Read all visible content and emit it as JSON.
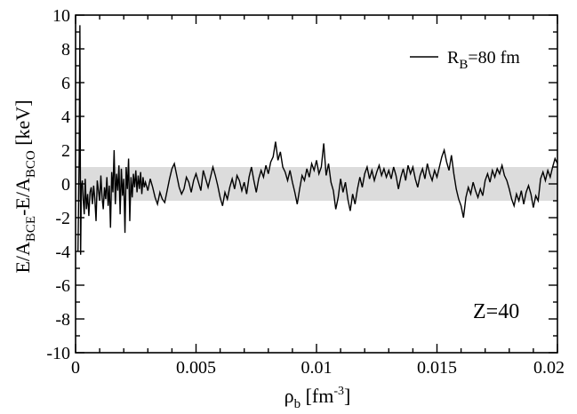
{
  "chart_data": {
    "type": "line",
    "xlabel": "ρ_b [fm^-3]",
    "ylabel": "E/A_BCE-E/A_BCO [keV]",
    "xlim": [
      0,
      0.02
    ],
    "ylim": [
      -10,
      10
    ],
    "x_ticks": [
      "0",
      "0.005",
      "0.01",
      "0.015",
      "0.02"
    ],
    "y_ticks": [
      "10",
      "8",
      "6",
      "4",
      "2",
      "0",
      "-2",
      "-4",
      "-6",
      "-8",
      "-10"
    ],
    "legend": {
      "placement": "top-right",
      "label": "R_B=80 fm"
    },
    "annotation": "Z=40",
    "band": {
      "ymin": -1,
      "ymax": 1,
      "color": "#dcdcdc"
    },
    "grid": false,
    "series": [
      {
        "name": "R_B=80 fm",
        "color": "#000000",
        "points": [
          [
            0.0001,
            -4.0
          ],
          [
            0.00015,
            1.5
          ],
          [
            0.00018,
            9.4
          ],
          [
            0.00021,
            -4.2
          ],
          [
            0.00024,
            -0.2
          ],
          [
            0.00028,
            0.2
          ],
          [
            0.00032,
            -1.0
          ],
          [
            0.00036,
            -1.8
          ],
          [
            0.0004,
            0.3
          ],
          [
            0.00045,
            -1.5
          ],
          [
            0.0005,
            -0.6
          ],
          [
            0.00055,
            -1.9
          ],
          [
            0.0006,
            -0.5
          ],
          [
            0.00065,
            -0.2
          ],
          [
            0.0007,
            -1.2
          ],
          [
            0.00075,
            -0.1
          ],
          [
            0.0008,
            -0.9
          ],
          [
            0.00085,
            -2.2
          ],
          [
            0.0009,
            0.2
          ],
          [
            0.00095,
            -0.4
          ],
          [
            0.001,
            -1.0
          ],
          [
            0.00105,
            0.5
          ],
          [
            0.0011,
            -0.8
          ],
          [
            0.00115,
            -1.5
          ],
          [
            0.0012,
            -0.2
          ],
          [
            0.00125,
            -0.9
          ],
          [
            0.0013,
            0.4
          ],
          [
            0.00135,
            -1.3
          ],
          [
            0.0014,
            -0.1
          ],
          [
            0.00145,
            -2.6
          ],
          [
            0.0015,
            0.7
          ],
          [
            0.00155,
            -0.5
          ],
          [
            0.0016,
            2.0
          ],
          [
            0.00165,
            -1.2
          ],
          [
            0.0017,
            0.6
          ],
          [
            0.00175,
            -0.4
          ],
          [
            0.0018,
            1.1
          ],
          [
            0.00185,
            -1.8
          ],
          [
            0.0019,
            0.9
          ],
          [
            0.00195,
            -0.7
          ],
          [
            0.002,
            0.3
          ],
          [
            0.00205,
            -2.9
          ],
          [
            0.0021,
            1.0
          ],
          [
            0.00215,
            -0.3
          ],
          [
            0.0022,
            1.5
          ],
          [
            0.00225,
            -2.2
          ],
          [
            0.0023,
            0.4
          ],
          [
            0.00235,
            -0.8
          ],
          [
            0.0024,
            0.6
          ],
          [
            0.00245,
            -0.2
          ],
          [
            0.0025,
            0.8
          ],
          [
            0.00255,
            -0.5
          ],
          [
            0.0026,
            0.5
          ],
          [
            0.00265,
            -0.3
          ],
          [
            0.0027,
            0.7
          ],
          [
            0.00275,
            -0.6
          ],
          [
            0.0028,
            0.4
          ],
          [
            0.00285,
            -0.2
          ],
          [
            0.0029,
            0.1
          ],
          [
            0.003,
            -0.4
          ],
          [
            0.0031,
            0.3
          ],
          [
            0.0032,
            -0.2
          ],
          [
            0.0033,
            -0.8
          ],
          [
            0.0034,
            -1.2
          ],
          [
            0.0035,
            -0.5
          ],
          [
            0.0036,
            -0.9
          ],
          [
            0.0037,
            -1.1
          ],
          [
            0.0038,
            -0.4
          ],
          [
            0.0039,
            0.3
          ],
          [
            0.004,
            0.9
          ],
          [
            0.0041,
            1.2
          ],
          [
            0.0042,
            0.5
          ],
          [
            0.0043,
            -0.2
          ],
          [
            0.0044,
            -0.6
          ],
          [
            0.0045,
            -0.3
          ],
          [
            0.0046,
            0.4
          ],
          [
            0.0047,
            0.1
          ],
          [
            0.0048,
            -0.5
          ],
          [
            0.0049,
            0.2
          ],
          [
            0.005,
            0.6
          ],
          [
            0.0051,
            0.1
          ],
          [
            0.0052,
            -0.4
          ],
          [
            0.0053,
            0.8
          ],
          [
            0.0054,
            0.3
          ],
          [
            0.0055,
            -0.2
          ],
          [
            0.0056,
            0.4
          ],
          [
            0.0057,
            1.0
          ],
          [
            0.0058,
            0.5
          ],
          [
            0.0059,
            -0.1
          ],
          [
            0.006,
            -0.8
          ],
          [
            0.0061,
            -1.3
          ],
          [
            0.0062,
            -0.5
          ],
          [
            0.0063,
            -0.9
          ],
          [
            0.0064,
            -0.2
          ],
          [
            0.0065,
            0.3
          ],
          [
            0.0066,
            -0.3
          ],
          [
            0.0067,
            0.5
          ],
          [
            0.0068,
            0.2
          ],
          [
            0.0069,
            -0.4
          ],
          [
            0.007,
            0.1
          ],
          [
            0.0071,
            -0.6
          ],
          [
            0.0072,
            0.4
          ],
          [
            0.0073,
            1.0
          ],
          [
            0.0074,
            0.2
          ],
          [
            0.0075,
            -0.5
          ],
          [
            0.0076,
            0.3
          ],
          [
            0.0077,
            0.8
          ],
          [
            0.0078,
            0.4
          ],
          [
            0.0079,
            1.1
          ],
          [
            0.008,
            0.6
          ],
          [
            0.0081,
            1.3
          ],
          [
            0.0082,
            1.6
          ],
          [
            0.0083,
            2.5
          ],
          [
            0.0084,
            1.4
          ],
          [
            0.0085,
            1.9
          ],
          [
            0.0086,
            1.0
          ],
          [
            0.0087,
            0.7
          ],
          [
            0.0088,
            0.2
          ],
          [
            0.0089,
            0.8
          ],
          [
            0.009,
            0.1
          ],
          [
            0.0091,
            -0.5
          ],
          [
            0.0092,
            -1.2
          ],
          [
            0.0093,
            -0.3
          ],
          [
            0.0094,
            0.5
          ],
          [
            0.0095,
            0.2
          ],
          [
            0.0096,
            0.9
          ],
          [
            0.0097,
            0.4
          ],
          [
            0.0098,
            1.2
          ],
          [
            0.0099,
            0.8
          ],
          [
            0.01,
            1.4
          ],
          [
            0.0101,
            0.6
          ],
          [
            0.0102,
            1.0
          ],
          [
            0.0103,
            2.4
          ],
          [
            0.0104,
            0.5
          ],
          [
            0.0105,
            1.2
          ],
          [
            0.0106,
            0.1
          ],
          [
            0.0107,
            -0.4
          ],
          [
            0.0108,
            -1.5
          ],
          [
            0.0109,
            -0.8
          ],
          [
            0.011,
            0.3
          ],
          [
            0.0111,
            -0.5
          ],
          [
            0.0112,
            0.1
          ],
          [
            0.0113,
            -0.9
          ],
          [
            0.0114,
            -1.6
          ],
          [
            0.0115,
            -0.6
          ],
          [
            0.0116,
            -1.2
          ],
          [
            0.0117,
            -0.3
          ],
          [
            0.0118,
            0.4
          ],
          [
            0.0119,
            -0.2
          ],
          [
            0.012,
            0.6
          ],
          [
            0.0121,
            1.0
          ],
          [
            0.0122,
            0.3
          ],
          [
            0.0123,
            0.8
          ],
          [
            0.0124,
            0.2
          ],
          [
            0.0125,
            0.7
          ],
          [
            0.0126,
            1.1
          ],
          [
            0.0127,
            0.5
          ],
          [
            0.0128,
            0.9
          ],
          [
            0.0129,
            0.4
          ],
          [
            0.013,
            0.8
          ],
          [
            0.0131,
            0.3
          ],
          [
            0.0132,
            1.0
          ],
          [
            0.0133,
            0.5
          ],
          [
            0.0134,
            -0.3
          ],
          [
            0.0135,
            0.4
          ],
          [
            0.0136,
            0.9
          ],
          [
            0.0137,
            0.2
          ],
          [
            0.0138,
            1.1
          ],
          [
            0.0139,
            0.6
          ],
          [
            0.014,
            1.0
          ],
          [
            0.0141,
            0.3
          ],
          [
            0.0142,
            -0.2
          ],
          [
            0.0143,
            0.5
          ],
          [
            0.0144,
            0.9
          ],
          [
            0.0145,
            0.3
          ],
          [
            0.0146,
            1.2
          ],
          [
            0.0147,
            0.6
          ],
          [
            0.0148,
            0.2
          ],
          [
            0.0149,
            0.8
          ],
          [
            0.015,
            0.4
          ],
          [
            0.0151,
            1.0
          ],
          [
            0.0152,
            1.6
          ],
          [
            0.0153,
            2.0
          ],
          [
            0.0154,
            1.3
          ],
          [
            0.0155,
            0.8
          ],
          [
            0.0156,
            1.7
          ],
          [
            0.0157,
            0.6
          ],
          [
            0.0158,
            -0.3
          ],
          [
            0.0159,
            -0.9
          ],
          [
            0.016,
            -1.3
          ],
          [
            0.0161,
            -2.0
          ],
          [
            0.0162,
            -0.8
          ],
          [
            0.0163,
            -0.2
          ],
          [
            0.0164,
            -0.6
          ],
          [
            0.0165,
            0.1
          ],
          [
            0.0166,
            -0.4
          ],
          [
            0.0167,
            -0.8
          ],
          [
            0.0168,
            -0.3
          ],
          [
            0.0169,
            -0.7
          ],
          [
            0.017,
            0.2
          ],
          [
            0.0171,
            0.6
          ],
          [
            0.0172,
            0.1
          ],
          [
            0.0173,
            0.8
          ],
          [
            0.0174,
            0.4
          ],
          [
            0.0175,
            0.9
          ],
          [
            0.0176,
            0.6
          ],
          [
            0.0177,
            1.1
          ],
          [
            0.0178,
            0.5
          ],
          [
            0.0179,
            0.2
          ],
          [
            0.018,
            -0.3
          ],
          [
            0.0181,
            -0.9
          ],
          [
            0.0182,
            -1.3
          ],
          [
            0.0183,
            -0.6
          ],
          [
            0.0184,
            -1.0
          ],
          [
            0.0185,
            -0.4
          ],
          [
            0.0186,
            -1.2
          ],
          [
            0.0187,
            -0.5
          ],
          [
            0.0188,
            -0.1
          ],
          [
            0.0189,
            -0.6
          ],
          [
            0.019,
            -1.4
          ],
          [
            0.0191,
            -0.7
          ],
          [
            0.0192,
            -1.0
          ],
          [
            0.0193,
            0.3
          ],
          [
            0.0194,
            0.7
          ],
          [
            0.0195,
            0.2
          ],
          [
            0.0196,
            0.8
          ],
          [
            0.0197,
            0.4
          ],
          [
            0.0198,
            1.0
          ],
          [
            0.0199,
            1.5
          ],
          [
            0.02,
            1.2
          ]
        ]
      }
    ]
  }
}
